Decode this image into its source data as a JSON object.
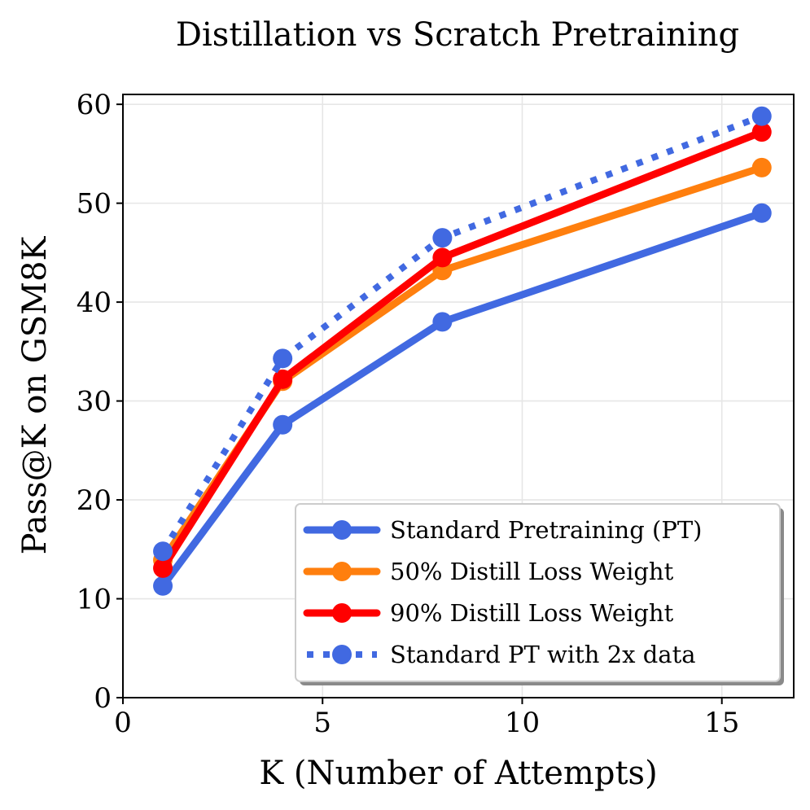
{
  "chart_data": {
    "type": "line",
    "title": "Distillation vs Scratch Pretraining",
    "xlabel": "K (Number of Attempts)",
    "ylabel": "Pass@K on GSM8K",
    "xlim": [
      0,
      16.8
    ],
    "ylim": [
      0,
      61
    ],
    "xticks": [
      0,
      5,
      10,
      15
    ],
    "yticks": [
      0,
      10,
      20,
      30,
      40,
      50,
      60
    ],
    "grid": true,
    "legend_position": "lower-right",
    "x": [
      1,
      4,
      8,
      16
    ],
    "series": [
      {
        "name": "Standard Pretraining (PT)",
        "values": [
          11.3,
          27.6,
          38.0,
          49.0
        ],
        "color": "#4169E1",
        "style": "solid"
      },
      {
        "name": "50% Distill Loss Weight",
        "values": [
          13.9,
          32.0,
          43.2,
          53.6
        ],
        "color": "#FF7F0E",
        "style": "solid"
      },
      {
        "name": "90% Distill Loss Weight",
        "values": [
          13.1,
          32.2,
          44.5,
          57.2
        ],
        "color": "#FF0000",
        "style": "solid"
      },
      {
        "name": "Standard PT with 2x data",
        "values": [
          14.8,
          34.3,
          46.5,
          58.8
        ],
        "color": "#4169E1",
        "style": "dotted"
      }
    ]
  }
}
